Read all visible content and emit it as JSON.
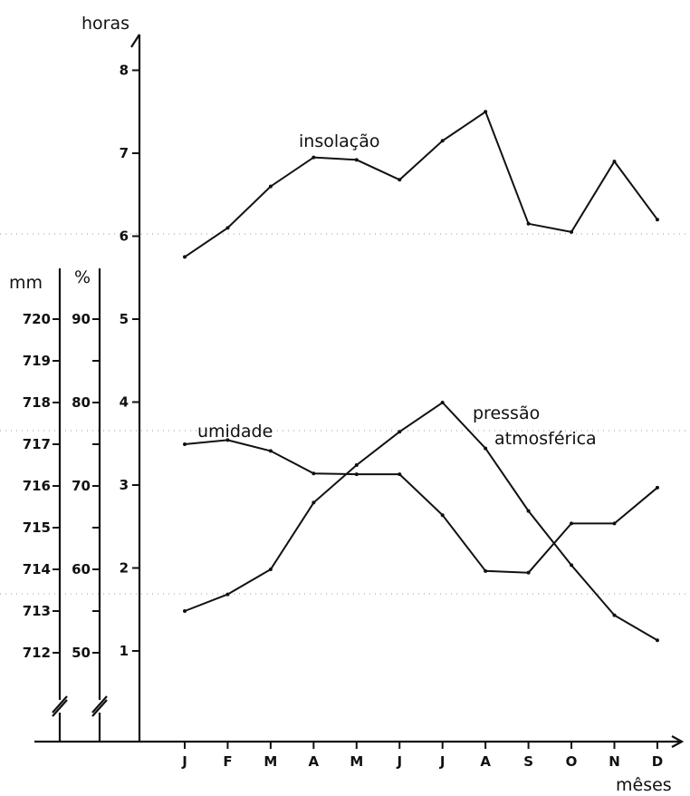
{
  "chart_data": {
    "type": "line",
    "categories": [
      "J",
      "F",
      "M",
      "A",
      "M",
      "J",
      "J",
      "A",
      "S",
      "O",
      "N",
      "D"
    ],
    "xlabel": "mêses",
    "axes": {
      "horas": {
        "label": "horas",
        "range": [
          0,
          8.5
        ],
        "ticks": [
          "1",
          "2",
          "3",
          "4",
          "5",
          "6",
          "7",
          "8"
        ]
      },
      "umidade_pct": {
        "label": "%",
        "range": [
          40,
          94
        ],
        "ticks": [
          "50",
          "60",
          "70",
          "80",
          "90"
        ]
      },
      "pressao_mm": {
        "label": "mm",
        "range": [
          711,
          721
        ],
        "ticks": [
          "712",
          "713",
          "714",
          "715",
          "716",
          "717",
          "718",
          "719",
          "720"
        ]
      }
    },
    "series": [
      {
        "name": "insolação",
        "axis": "horas",
        "values": [
          5.75,
          6.1,
          6.6,
          6.95,
          6.92,
          6.68,
          7.15,
          7.5,
          6.15,
          6.05,
          6.9,
          6.2
        ]
      },
      {
        "name": "umidade",
        "axis": "umidade_pct",
        "values": [
          75,
          75.5,
          74.2,
          71.5,
          71.4,
          71.4,
          66.5,
          59.8,
          59.6,
          65.5,
          65.5,
          69.8
        ]
      },
      {
        "name": "pressão atmosférica",
        "axis": "pressao_mm",
        "values": [
          713,
          713.4,
          714,
          715.6,
          716.5,
          717.3,
          718,
          716.9,
          715.4,
          714.1,
          712.9,
          712.3
        ]
      }
    ],
    "labels": {
      "insolacao": "insolação",
      "umidade": "umidade",
      "pressao_1": "pressão",
      "pressao_2": "atmosférica"
    }
  }
}
